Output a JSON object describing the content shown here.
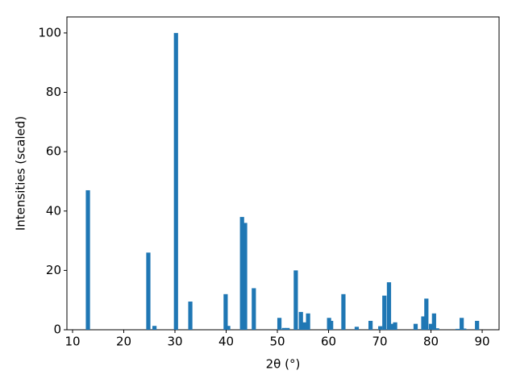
{
  "chart_data": {
    "type": "bar",
    "x_label": "2θ (°)",
    "y_label": "Intensities (scaled)",
    "x": [
      13.0,
      24.8,
      26.0,
      30.2,
      33.0,
      39.9,
      40.4,
      43.1,
      43.7,
      45.4,
      50.4,
      51.3,
      52.0,
      53.6,
      54.6,
      55.2,
      56.0,
      60.1,
      60.5,
      62.9,
      65.5,
      68.2,
      70.1,
      70.9,
      71.8,
      72.4,
      73.0,
      77.0,
      78.5,
      79.1,
      80.0,
      80.6,
      81.2,
      85.2,
      86.0,
      86.5,
      89.0
    ],
    "values": [
      47,
      26,
      1.3,
      100,
      9.5,
      12,
      1.3,
      38,
      36,
      14,
      4,
      0.6,
      0.6,
      20,
      6,
      2.5,
      5.5,
      4,
      3,
      12,
      1,
      3,
      1.2,
      11.5,
      16,
      2,
      2.5,
      2,
      4.5,
      10.5,
      2,
      5.5,
      0.5,
      0.3,
      4,
      0.4,
      3
    ],
    "color": "#1f77b4",
    "xlim": [
      8.9,
      93.3
    ],
    "xticks": [
      10,
      20,
      30,
      40,
      50,
      60,
      70,
      80,
      90
    ],
    "ylim": [
      0,
      105.4
    ],
    "yticks": [
      0,
      20,
      40,
      60,
      80,
      100
    ],
    "grid": false
  }
}
